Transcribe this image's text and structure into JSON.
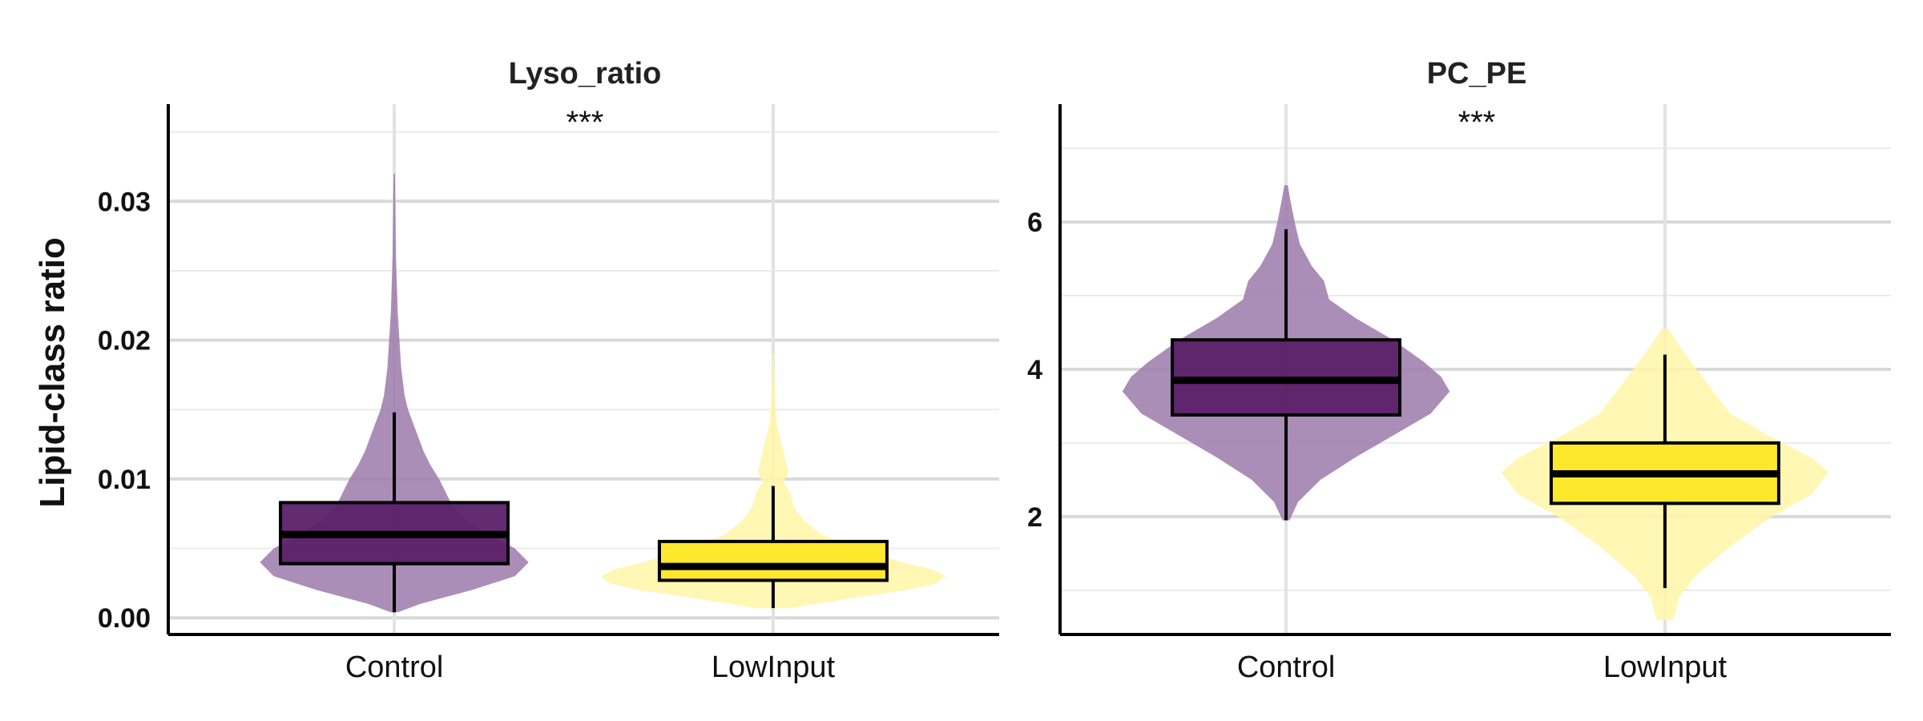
{
  "y_axis_label": "Lipid-class ratio",
  "chart_data": [
    {
      "type": "violin",
      "title": "Lyso_ratio",
      "significance": "***",
      "categories": [
        "Control",
        "LowInput"
      ],
      "ylim": [
        -0.0012,
        0.037
      ],
      "yticks": [
        0.0,
        0.01,
        0.02,
        0.03
      ],
      "ytick_labels": [
        "0.00",
        "0.01",
        "0.02",
        "0.03"
      ],
      "grid": true,
      "series": [
        {
          "category": "Control",
          "color": "#5B2068",
          "violin_color": "#9C7AAA",
          "box": {
            "q1": 0.0039,
            "median": 0.006,
            "q3": 0.0083,
            "whisker_low": 0.0004,
            "whisker_high": 0.0148
          },
          "violin_profile": [
            [
              0.0004,
              0.02
            ],
            [
              0.001,
              0.15
            ],
            [
              0.002,
              0.45
            ],
            [
              0.003,
              0.7
            ],
            [
              0.004,
              0.78
            ],
            [
              0.005,
              0.7
            ],
            [
              0.006,
              0.55
            ],
            [
              0.007,
              0.42
            ],
            [
              0.008,
              0.34
            ],
            [
              0.009,
              0.3
            ],
            [
              0.01,
              0.26
            ],
            [
              0.011,
              0.21
            ],
            [
              0.012,
              0.17
            ],
            [
              0.013,
              0.14
            ],
            [
              0.014,
              0.11
            ],
            [
              0.015,
              0.08
            ],
            [
              0.016,
              0.06
            ],
            [
              0.018,
              0.04
            ],
            [
              0.02,
              0.03
            ],
            [
              0.022,
              0.02
            ],
            [
              0.026,
              0.01
            ],
            [
              0.032,
              0.004
            ]
          ]
        },
        {
          "category": "LowInput",
          "color": "#FDE725",
          "violin_color": "#FFF6A6",
          "box": {
            "q1": 0.0027,
            "median": 0.0037,
            "q3": 0.0055,
            "whisker_low": 0.0007,
            "whisker_high": 0.0095
          },
          "violin_profile": [
            [
              0.0007,
              0.1
            ],
            [
              0.0015,
              0.5
            ],
            [
              0.002,
              0.78
            ],
            [
              0.0025,
              0.95
            ],
            [
              0.003,
              1.0
            ],
            [
              0.0035,
              0.92
            ],
            [
              0.004,
              0.75
            ],
            [
              0.005,
              0.5
            ],
            [
              0.006,
              0.28
            ],
            [
              0.007,
              0.18
            ],
            [
              0.008,
              0.12
            ],
            [
              0.009,
              0.1
            ],
            [
              0.0098,
              0.06
            ],
            [
              0.0105,
              0.09
            ],
            [
              0.011,
              0.08
            ],
            [
              0.012,
              0.06
            ],
            [
              0.013,
              0.04
            ],
            [
              0.014,
              0.02
            ],
            [
              0.016,
              0.01
            ],
            [
              0.019,
              0.004
            ]
          ]
        }
      ]
    },
    {
      "type": "violin",
      "title": "PC_PE",
      "significance": "***",
      "categories": [
        "Control",
        "LowInput"
      ],
      "ylim": [
        0.4,
        7.6
      ],
      "yticks": [
        2,
        4,
        6
      ],
      "ytick_labels": [
        "2",
        "4",
        "6"
      ],
      "grid": true,
      "series": [
        {
          "category": "Control",
          "color": "#5B2068",
          "violin_color": "#9C7AAA",
          "box": {
            "q1": 3.38,
            "median": 3.85,
            "q3": 4.4,
            "whisker_low": 1.95,
            "whisker_high": 5.9
          },
          "violin_profile": [
            [
              1.95,
              0.02
            ],
            [
              2.2,
              0.07
            ],
            [
              2.5,
              0.2
            ],
            [
              2.8,
              0.4
            ],
            [
              3.1,
              0.62
            ],
            [
              3.4,
              0.84
            ],
            [
              3.7,
              0.95
            ],
            [
              3.9,
              0.9
            ],
            [
              4.1,
              0.8
            ],
            [
              4.4,
              0.62
            ],
            [
              4.7,
              0.4
            ],
            [
              4.95,
              0.25
            ],
            [
              5.2,
              0.22
            ],
            [
              5.4,
              0.15
            ],
            [
              5.7,
              0.08
            ],
            [
              6.0,
              0.05
            ],
            [
              6.3,
              0.025
            ],
            [
              6.5,
              0.01
            ]
          ]
        },
        {
          "category": "LowInput",
          "color": "#FDE725",
          "violin_color": "#FFF6A6",
          "box": {
            "q1": 2.18,
            "median": 2.58,
            "q3": 3.0,
            "whisker_low": 1.03,
            "whisker_high": 4.2
          },
          "violin_profile": [
            [
              0.6,
              0.05
            ],
            [
              0.9,
              0.08
            ],
            [
              1.2,
              0.18
            ],
            [
              1.6,
              0.38
            ],
            [
              2.0,
              0.62
            ],
            [
              2.3,
              0.85
            ],
            [
              2.6,
              0.95
            ],
            [
              2.8,
              0.85
            ],
            [
              3.1,
              0.6
            ],
            [
              3.4,
              0.38
            ],
            [
              3.7,
              0.28
            ],
            [
              3.95,
              0.2
            ],
            [
              4.2,
              0.12
            ],
            [
              4.4,
              0.06
            ],
            [
              4.55,
              0.02
            ]
          ]
        }
      ]
    }
  ]
}
